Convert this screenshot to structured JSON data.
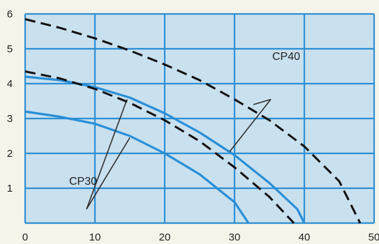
{
  "chart_data": {
    "type": "line",
    "title": "",
    "xlabel": "",
    "ylabel": "",
    "xlim": [
      0,
      50
    ],
    "ylim": [
      0,
      6
    ],
    "x_ticks": [
      "0",
      "10",
      "20",
      "30",
      "40",
      "50"
    ],
    "y_ticks": [
      "1",
      "2",
      "3",
      "4",
      "5",
      "6"
    ],
    "grid": true,
    "colors": {
      "plot_background": "#c9e0ef",
      "grid": "#2f8fd2",
      "solid_curve": "#2a8fd6",
      "dashed_curve": "#111111",
      "leader_line": "#2f2f2f"
    },
    "series": [
      {
        "style": "solid",
        "points": [
          [
            0,
            4.2
          ],
          [
            5,
            4.1
          ],
          [
            10,
            3.9
          ],
          [
            15,
            3.6
          ],
          [
            20,
            3.15
          ],
          [
            25,
            2.6
          ],
          [
            30,
            1.95
          ],
          [
            35,
            1.15
          ],
          [
            39,
            0.4
          ],
          [
            40,
            0.0
          ]
        ]
      },
      {
        "style": "solid",
        "points": [
          [
            0,
            3.2
          ],
          [
            5,
            3.05
          ],
          [
            10,
            2.85
          ],
          [
            15,
            2.5
          ],
          [
            20,
            2.0
          ],
          [
            25,
            1.4
          ],
          [
            30,
            0.6
          ],
          [
            32,
            0.0
          ]
        ]
      },
      {
        "style": "dashed",
        "points": [
          [
            0,
            5.85
          ],
          [
            5,
            5.6
          ],
          [
            10,
            5.3
          ],
          [
            15,
            4.95
          ],
          [
            20,
            4.55
          ],
          [
            25,
            4.1
          ],
          [
            30,
            3.55
          ],
          [
            35,
            2.95
          ],
          [
            40,
            2.2
          ],
          [
            45,
            1.2
          ],
          [
            48,
            0.0
          ]
        ]
      },
      {
        "style": "dashed",
        "points": [
          [
            0,
            4.35
          ],
          [
            5,
            4.15
          ],
          [
            10,
            3.85
          ],
          [
            15,
            3.45
          ],
          [
            20,
            2.95
          ],
          [
            25,
            2.35
          ],
          [
            30,
            1.6
          ],
          [
            35,
            0.75
          ],
          [
            38.5,
            0.0
          ]
        ]
      }
    ],
    "annotations": [
      {
        "text": "CP40",
        "anchor": [
          35.2,
          3.55
        ],
        "targets": [
          [
            32.7,
            3.4
          ],
          [
            29.3,
            2.05
          ]
        ]
      },
      {
        "text": "CP30",
        "anchor": [
          8.8,
          0.4
        ],
        "targets": [
          [
            14.6,
            3.55
          ],
          [
            15,
            2.45
          ]
        ]
      }
    ]
  }
}
